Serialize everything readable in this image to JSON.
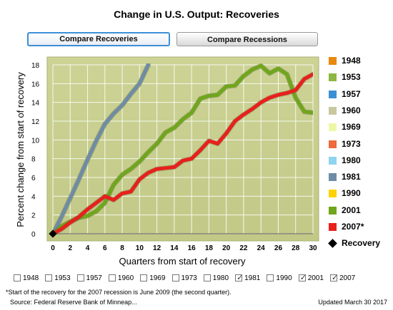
{
  "title": "Change in U.S. Output: Recoveries",
  "buttons": {
    "compare_recoveries": "Compare Recoveries",
    "compare_recessions": "Compare Recessions"
  },
  "legend": [
    {
      "label": "1948",
      "color": "#e8890c"
    },
    {
      "label": "1953",
      "color": "#8db73f"
    },
    {
      "label": "1957",
      "color": "#3a8fd4"
    },
    {
      "label": "1960",
      "color": "#c8c8a0"
    },
    {
      "label": "1969",
      "color": "#eef7a8"
    },
    {
      "label": "1973",
      "color": "#ef6a3c"
    },
    {
      "label": "1980",
      "color": "#8fd4ee"
    },
    {
      "label": "1981",
      "color": "#6e8ca6"
    },
    {
      "label": "1990",
      "color": "#ffd200"
    },
    {
      "label": "2001",
      "color": "#6fa61c"
    },
    {
      "label": "2007*",
      "color": "#e8201c"
    }
  ],
  "legend_recovery_label": "Recovery",
  "checkboxes": [
    {
      "label": "1948",
      "checked": false
    },
    {
      "label": "1953",
      "checked": false
    },
    {
      "label": "1957",
      "checked": false
    },
    {
      "label": "1960",
      "checked": false
    },
    {
      "label": "1969",
      "checked": false
    },
    {
      "label": "1973",
      "checked": false
    },
    {
      "label": "1980",
      "checked": false
    },
    {
      "label": "1981",
      "checked": true
    },
    {
      "label": "1990",
      "checked": false
    },
    {
      "label": "2001",
      "checked": true
    },
    {
      "label": "2007",
      "checked": true
    }
  ],
  "footnote": "*Start of the recovery for the 2007 recession is June 2009 (the second quarter).",
  "source": "Source: Federal Reserve Bank of Minneap...",
  "updated": "Updated March 30 2017",
  "chart_data": {
    "type": "line",
    "xlabel": "Quarters from start of recovery",
    "ylabel": "Percent change from start of recovery",
    "xlim": [
      0,
      30
    ],
    "ylim": [
      0,
      18
    ],
    "xticks": [
      0,
      2,
      4,
      6,
      8,
      10,
      12,
      14,
      16,
      18,
      20,
      22,
      24,
      26,
      28,
      30
    ],
    "yticks": [
      0,
      2,
      4,
      6,
      8,
      10,
      12,
      14,
      16,
      18
    ],
    "grid": true,
    "background": "#c9cf8f",
    "series": [
      {
        "name": "1981",
        "color": "#6e8ca6",
        "x": [
          0,
          1,
          2,
          3,
          4,
          5,
          6,
          7,
          8,
          9,
          10,
          11
        ],
        "y": [
          0,
          1.8,
          3.8,
          5.8,
          7.9,
          9.9,
          11.7,
          12.8,
          13.7,
          14.9,
          16.0,
          18.0
        ]
      },
      {
        "name": "2001",
        "color": "#6fa61c",
        "x": [
          0,
          1,
          2,
          3,
          4,
          5,
          6,
          7,
          8,
          9,
          10,
          11,
          12,
          13,
          14,
          15,
          16,
          17,
          18,
          19,
          20,
          21,
          22,
          23,
          24,
          25,
          26,
          27,
          28,
          29,
          30
        ],
        "y": [
          0,
          0.8,
          1.3,
          1.7,
          1.9,
          2.4,
          3.3,
          5.2,
          6.3,
          6.9,
          7.7,
          8.7,
          9.6,
          10.8,
          11.3,
          12.2,
          12.9,
          14.4,
          14.7,
          14.8,
          15.7,
          15.8,
          16.8,
          17.5,
          17.9,
          17.1,
          17.6,
          17.0,
          14.5,
          13.0,
          12.9
        ]
      },
      {
        "name": "2007*",
        "color": "#e8201c",
        "x": [
          0,
          1,
          2,
          3,
          4,
          5,
          6,
          7,
          8,
          9,
          10,
          11,
          12,
          13,
          14,
          15,
          16,
          17,
          18,
          19,
          20,
          21,
          22,
          23,
          24,
          25,
          26,
          27,
          28,
          29,
          30
        ],
        "y": [
          0,
          0.5,
          1.2,
          1.8,
          2.6,
          3.3,
          4.0,
          3.6,
          4.3,
          4.5,
          5.8,
          6.5,
          6.9,
          7.0,
          7.1,
          7.8,
          8.0,
          8.9,
          9.9,
          9.6,
          10.7,
          12.0,
          12.7,
          13.3,
          14.0,
          14.5,
          14.8,
          15.0,
          15.3,
          16.5,
          17.0
        ]
      }
    ]
  }
}
